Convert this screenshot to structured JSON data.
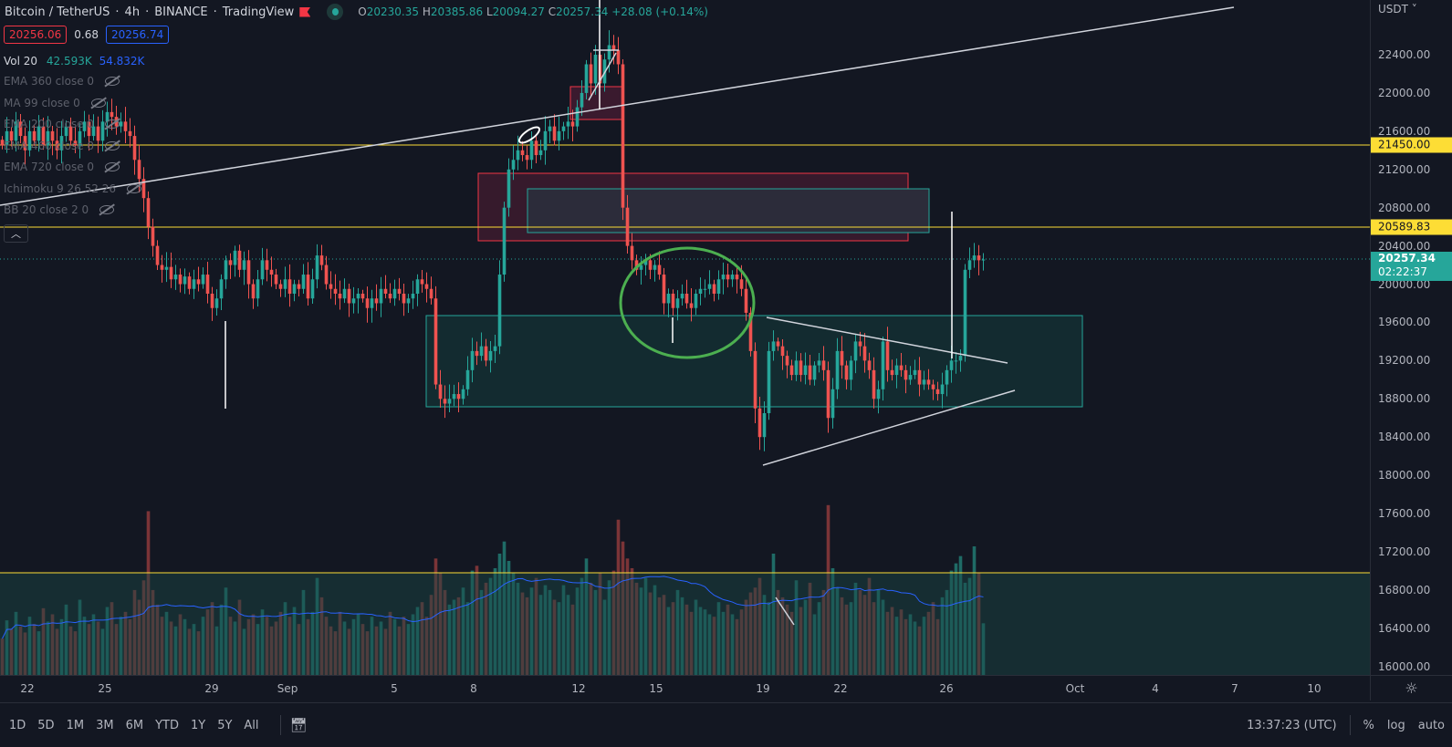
{
  "header": {
    "symbol": "Bitcoin / TetherUS",
    "interval": "4h",
    "exchange": "BINANCE",
    "source": "TradingView",
    "sep": "·",
    "open_label": "O",
    "open": "20230.35",
    "high_label": "H",
    "high": "20385.86",
    "low_label": "L",
    "low": "20094.27",
    "close_label": "C",
    "close": "20257.34",
    "change": "+28.08 (+0.14%)"
  },
  "quote": {
    "sell": "20256.06",
    "spread": "0.68",
    "buy": "20256.74"
  },
  "volume_legend": {
    "label": "Vol 20",
    "value": "42.593K",
    "ma": "54.832K"
  },
  "indicators": [
    {
      "label": "EMA 360 close 0"
    },
    {
      "label": "MA 99 close 0"
    },
    {
      "label": "EMA 200 close 0"
    },
    {
      "label": "EMA 460 close 0"
    },
    {
      "label": "EMA 720 close 0"
    },
    {
      "label": "Ichimoku 9 26 52 26"
    },
    {
      "label": "BB 20 close 2 0"
    }
  ],
  "collapse_icon": "chevron-up",
  "price_axis": {
    "currency": "USDT ˅",
    "labels": [
      "22400.00",
      "22000.00",
      "21600.00",
      "21200.00",
      "20800.00",
      "20400.00",
      "20000.00",
      "19600.00",
      "19200.00",
      "18800.00",
      "18400.00",
      "18000.00",
      "17600.00",
      "17200.00",
      "16800.00",
      "16400.00",
      "16000.00"
    ],
    "levels": [
      {
        "price": "21450.00"
      },
      {
        "price": "20589.83"
      }
    ],
    "current": {
      "price": "20257.34",
      "countdown": "02:22:37"
    }
  },
  "time_axis": [
    "22",
    "25",
    "29",
    "Sep",
    "5",
    "8",
    "12",
    "15",
    "19",
    "22",
    "26",
    "Oct",
    "4",
    "7",
    "10"
  ],
  "bottom_bar": {
    "ranges": [
      "1D",
      "5D",
      "1M",
      "3M",
      "6M",
      "YTD",
      "1Y",
      "5Y",
      "All"
    ],
    "clock": "13:37:23 (UTC)",
    "percent": "%",
    "log": "log",
    "auto": "auto"
  },
  "colors": {
    "up": "#26a69a",
    "down": "#ef5350",
    "level": "#fddd35",
    "bg": "#131722",
    "ma": "#2962ff"
  },
  "chart_data": {
    "type": "candlestick",
    "title": "Bitcoin / TetherUS · 4h · BINANCE",
    "ylim": [
      16000,
      22800
    ],
    "ylabel": "USDT",
    "xlabel": "",
    "grid": false,
    "closes": [
      21450,
      21600,
      21500,
      21700,
      21550,
      21400,
      21600,
      21500,
      21650,
      21450,
      21600,
      21500,
      21400,
      21550,
      21650,
      21500,
      21450,
      21600,
      21700,
      21550,
      21650,
      21500,
      21700,
      21800,
      21750,
      21650,
      21700,
      21600,
      21550,
      21300,
      21100,
      20900,
      20600,
      20400,
      20200,
      20150,
      20180,
      20050,
      20100,
      20000,
      20080,
      19950,
      20050,
      20000,
      20100,
      19900,
      19750,
      19850,
      20050,
      20250,
      20200,
      20350,
      20150,
      20250,
      20000,
      19850,
      20050,
      20250,
      20150,
      20100,
      20000,
      19950,
      20050,
      19900,
      20000,
      19950,
      20100,
      19850,
      20050,
      20300,
      20200,
      20000,
      19950,
      19900,
      19850,
      19950,
      19800,
      19850,
      19900,
      19850,
      19750,
      19850,
      19800,
      19950,
      19900,
      19850,
      19950,
      19900,
      19800,
      19850,
      19900,
      20050,
      20000,
      19950,
      19850,
      18950,
      18800,
      18750,
      18800,
      18850,
      18800,
      18900,
      19100,
      19300,
      19250,
      19350,
      19200,
      19300,
      19350,
      20100,
      20800,
      21200,
      21300,
      21400,
      21350,
      21300,
      21500,
      21350,
      21400,
      21600,
      21650,
      21500,
      21600,
      21650,
      21700,
      21650,
      21850,
      22000,
      22300,
      22100,
      22400,
      22100,
      22350,
      22500,
      22450,
      22300,
      20800,
      20400,
      20250,
      20150,
      20200,
      20250,
      20150,
      20200,
      20100,
      19800,
      19900,
      19750,
      19850,
      19900,
      19800,
      19750,
      19900,
      19950,
      19950,
      20000,
      19900,
      20050,
      20100,
      20050,
      20100,
      20050,
      19950,
      19700,
      19300,
      18700,
      18400,
      18650,
      19300,
      19400,
      19350,
      19250,
      19150,
      19050,
      19200,
      19050,
      19150,
      19000,
      19150,
      19200,
      19100,
      18600,
      18900,
      19300,
      19150,
      19000,
      19200,
      19400,
      19350,
      19200,
      19100,
      18800,
      18900,
      19400,
      19100,
      19050,
      19150,
      19100,
      19000,
      19050,
      19100,
      18950,
      19000,
      18950,
      18900,
      18850,
      18950,
      19100,
      19200,
      19200,
      19250,
      20150,
      20250,
      20300,
      20250,
      20257.34
    ],
    "volumes_k": [
      30,
      45,
      38,
      52,
      40,
      35,
      48,
      42,
      36,
      55,
      44,
      50,
      38,
      46,
      58,
      40,
      36,
      62,
      48,
      42,
      50,
      44,
      38,
      56,
      60,
      42,
      48,
      52,
      46,
      70,
      62,
      78,
      135,
      70,
      58,
      48,
      52,
      44,
      40,
      50,
      46,
      38,
      42,
      36,
      48,
      54,
      60,
      40,
      58,
      72,
      48,
      44,
      62,
      38,
      46,
      50,
      42,
      54,
      48,
      40,
      44,
      52,
      60,
      48,
      56,
      42,
      70,
      46,
      52,
      80,
      64,
      48,
      40,
      36,
      52,
      44,
      38,
      46,
      50,
      42,
      36,
      48,
      40,
      44,
      38,
      52,
      46,
      40,
      48,
      42,
      50,
      56,
      60,
      48,
      66,
      96,
      84,
      70,
      58,
      62,
      64,
      72,
      60,
      86,
      90,
      70,
      76,
      80,
      88,
      100,
      110,
      94,
      84,
      76,
      68,
      64,
      72,
      80,
      66,
      74,
      70,
      62,
      60,
      74,
      66,
      58,
      72,
      80,
      96,
      76,
      70,
      84,
      62,
      78,
      86,
      128,
      110,
      96,
      88,
      76,
      72,
      80,
      68,
      74,
      64,
      66,
      56,
      60,
      70,
      64,
      58,
      52,
      62,
      56,
      54,
      50,
      48,
      60,
      52,
      58,
      50,
      46,
      54,
      62,
      68,
      72,
      80,
      66,
      60,
      100,
      70,
      64,
      58,
      52,
      78,
      56,
      62,
      76,
      50,
      60,
      70,
      140,
      88,
      72,
      64,
      58,
      60,
      76,
      70,
      66,
      80,
      60,
      70,
      62,
      52,
      56,
      48,
      54,
      46,
      50,
      44,
      40,
      48,
      52,
      60,
      46,
      64,
      70,
      86,
      92,
      98,
      76,
      80,
      106,
      84,
      42.593
    ]
  }
}
